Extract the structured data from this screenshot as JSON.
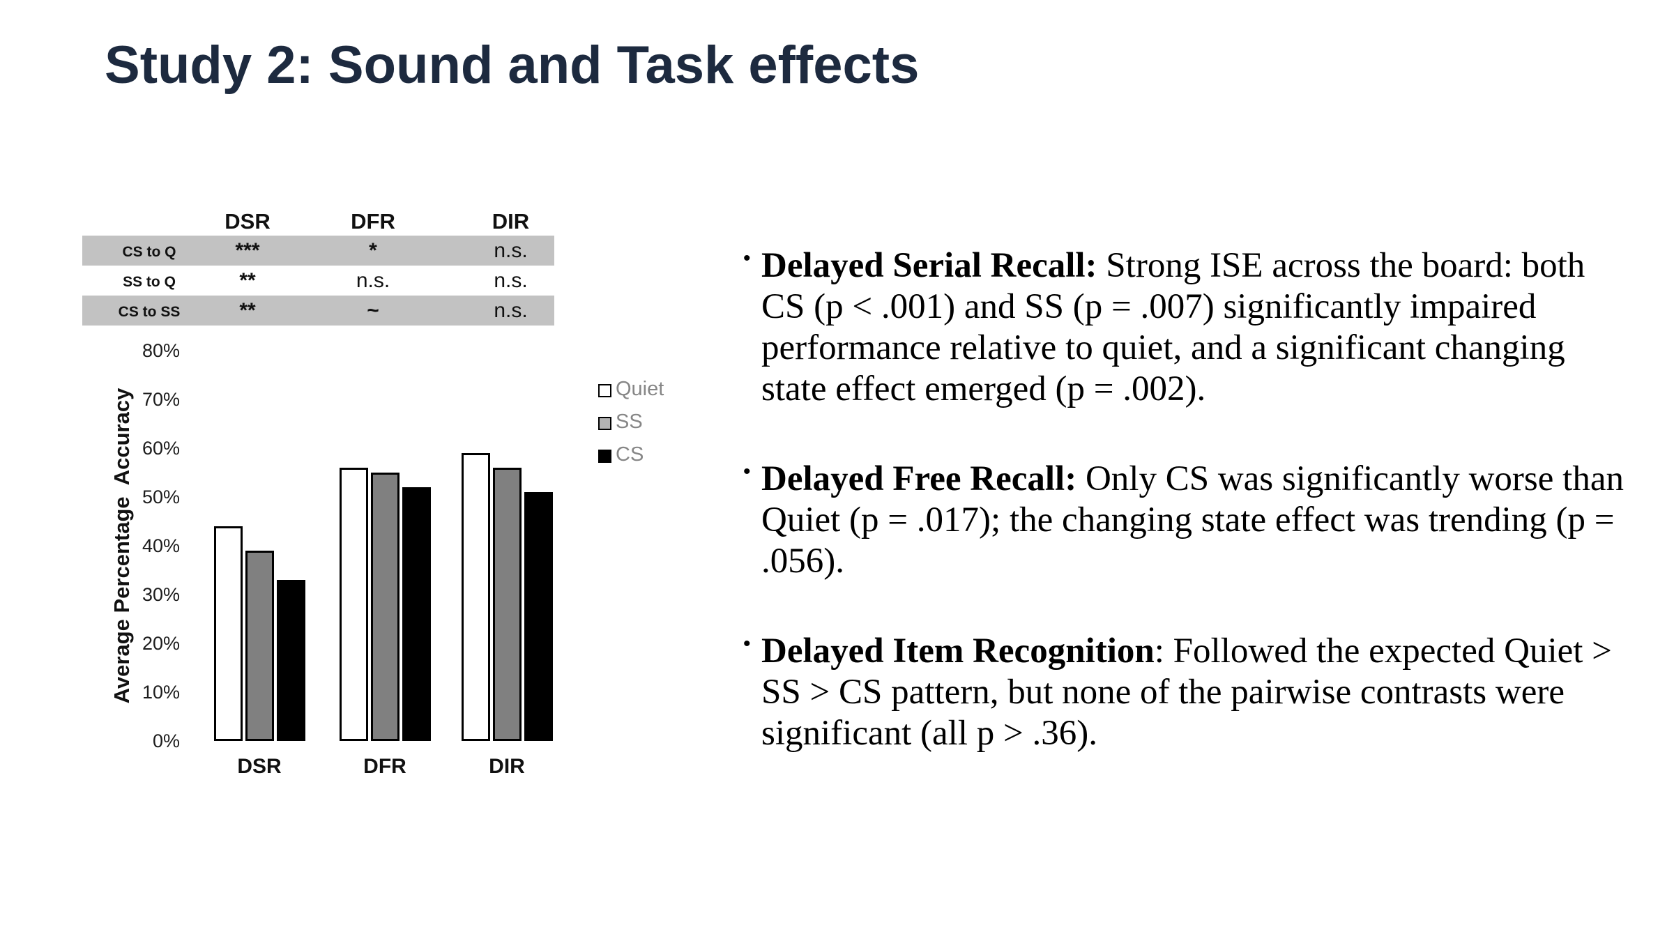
{
  "title": "Study 2: Sound and Task effects",
  "colors": {
    "title_text": "#1d2a3f",
    "table_shaded_row": "#c2c2c2",
    "legend_text": "#868686",
    "bar_outline": "#000000"
  },
  "sig_table": {
    "columns": [
      "DSR",
      "DFR",
      "DIR"
    ],
    "rows": [
      {
        "label": "CS to Q",
        "cells": [
          "***",
          "*",
          "n.s."
        ],
        "shaded": true
      },
      {
        "label": "SS to Q",
        "cells": [
          "**",
          "n.s.",
          "n.s."
        ],
        "shaded": false
      },
      {
        "label": "CS to SS",
        "cells": [
          "**",
          "~",
          "n.s."
        ],
        "shaded": true
      }
    ]
  },
  "chart_data": {
    "type": "bar",
    "title": "",
    "categories": [
      "DSR",
      "DFR",
      "DIR"
    ],
    "series": [
      {
        "name": "Quiet",
        "color": "#ffffff",
        "legend_swatch": "#ffffff",
        "values": [
          44,
          56,
          59
        ]
      },
      {
        "name": "SS",
        "color": "#808080",
        "legend_swatch": "#b3b3b3",
        "values": [
          39,
          55,
          56
        ]
      },
      {
        "name": "CS",
        "color": "#000000",
        "legend_swatch": "#000000",
        "values": [
          33,
          52,
          51
        ]
      }
    ],
    "xlabel": "",
    "ylabel": "Average Percentage  Accuracy",
    "ylim": [
      0,
      80
    ],
    "ytick_step": 10,
    "ytick_format": "percent",
    "grid": false,
    "legend_position": "right"
  },
  "bullets": [
    {
      "lead": "Delayed Serial Recall:",
      "text": " Strong ISE across the board: both CS (p < .001) and SS (p = .007) significantly impaired performance relative to quiet, and a significant changing state effect emerged (p = .002)."
    },
    {
      "lead": "Delayed Free Recall:",
      "text": " Only CS was significantly worse than Quiet (p = .017); the changing state effect was trending (p = .056)."
    },
    {
      "lead": "Delayed Item Recognition",
      "text": ": Followed the expected Quiet > SS > CS pattern, but none of the pairwise contrasts were significant (all p > .36)."
    }
  ]
}
